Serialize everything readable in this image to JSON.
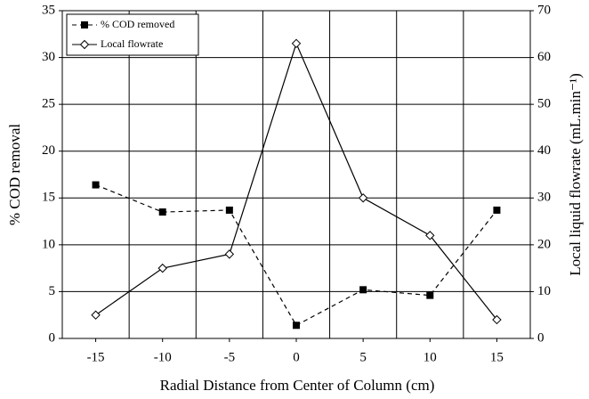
{
  "chart_data": {
    "type": "line",
    "x_label": "Radial Distance from Center of Column (cm)",
    "y_label": "% COD removal",
    "y2_label": "Local liquid flowrate (mL.min⁻¹)",
    "categories": [
      "-15",
      "-10",
      "-5",
      "0",
      "5",
      "10",
      "15"
    ],
    "series": [
      {
        "name": "% COD removed",
        "color": "#000000",
        "values": [
          16.4,
          13.5,
          13.7,
          1.4,
          5.2,
          4.6,
          13.7
        ]
      },
      {
        "name": "Local flowrate",
        "color": "#000000",
        "axis": "y2",
        "values": [
          5,
          15,
          18,
          63,
          30,
          22,
          4
        ]
      }
    ],
    "ylim": [
      0,
      35
    ],
    "yticks": [
      0,
      5,
      10,
      15,
      20,
      25,
      30,
      35
    ],
    "y2lim": [
      0,
      70
    ],
    "y2ticks": [
      0,
      10,
      20,
      30,
      40,
      50,
      60,
      70
    ],
    "grid": true,
    "legend": "top-left"
  }
}
